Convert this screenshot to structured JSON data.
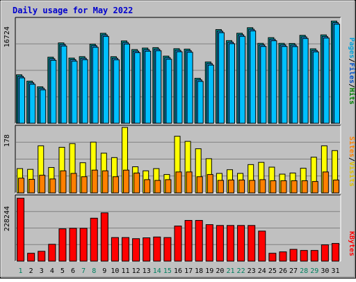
{
  "chart_data": {
    "type": "bar",
    "title": "Daily usage for May 2022",
    "categories": [
      "1",
      "2",
      "3",
      "4",
      "5",
      "6",
      "7",
      "8",
      "9",
      "10",
      "11",
      "12",
      "13",
      "14",
      "15",
      "16",
      "17",
      "18",
      "19",
      "20",
      "21",
      "22",
      "23",
      "24",
      "25",
      "26",
      "27",
      "28",
      "29",
      "30",
      "31"
    ],
    "weekend_days": [
      "1",
      "7",
      "8",
      "14",
      "15",
      "21",
      "22",
      "28",
      "29"
    ],
    "panels": [
      {
        "id": "hits",
        "ymax": 16724,
        "ymax_label": "16724",
        "legend": [
          {
            "text": "Pages",
            "color": "#00a0d8"
          },
          {
            "text": "/",
            "color": "#000000"
          },
          {
            "text": "Files",
            "color": "#0050c8"
          },
          {
            "text": "/",
            "color": "#000000"
          },
          {
            "text": "Hits",
            "color": "#008000"
          }
        ],
        "series": [
          {
            "name": "Hits",
            "color": "#00a0a0",
            "values": [
              7810,
              6790,
              5870,
              10650,
              12950,
              10510,
              10740,
              12750,
              14500,
              10730,
              13270,
              11880,
              12120,
              12190,
              10820,
              12020,
              11950,
              7250,
              9880,
              15100,
              13320,
              14510,
              15400,
              12880,
              13800,
              12880,
              12860,
              14170,
              12000,
              14240,
              16470
            ]
          },
          {
            "name": "Files",
            "color": "#1b8fdc",
            "values": [
              7560,
              6540,
              5640,
              10400,
              12700,
              10260,
              10490,
              12500,
              14250,
              10480,
              13020,
              11630,
              11870,
              11940,
              10570,
              11770,
              11700,
              7000,
              9630,
              14850,
              13070,
              14260,
              15150,
              12630,
              13550,
              12630,
              12610,
              13920,
              11750,
              13990,
              16220
            ]
          },
          {
            "name": "Pages",
            "color": "#00c0ff",
            "values": [
              7310,
              6290,
              5390,
              10150,
              12450,
              10010,
              10240,
              12250,
              14000,
              10230,
              12770,
              11380,
              11620,
              11690,
              10320,
              11520,
              11450,
              6750,
              9380,
              14600,
              12820,
              14010,
              14900,
              12380,
              13300,
              12380,
              12360,
              13670,
              11500,
              13740,
              15970
            ]
          }
        ]
      },
      {
        "id": "visits",
        "ymax": 178,
        "ymax_label": "178",
        "legend": [
          {
            "text": "Sites",
            "color": "#ff8000"
          },
          {
            "text": "/",
            "color": "#000000"
          },
          {
            "text": "Visits",
            "color": "#e0c000"
          }
        ],
        "series": [
          {
            "name": "Visits",
            "color": "#ffff00",
            "values": [
              66,
              64,
              128,
              69,
              124,
              134,
              82,
              138,
              108,
              96,
              178,
              71,
              60,
              66,
              50,
              154,
              140,
              120,
              93,
              53,
              63,
              53,
              77,
              83,
              70,
              51,
              54,
              67,
              97,
              128,
              115
            ]
          },
          {
            "name": "Sites",
            "color": "#ff8000",
            "values": [
              40,
              37,
              48,
              38,
              60,
              53,
              44,
              62,
              60,
              44,
              62,
              54,
              36,
              34,
              36,
              57,
              57,
              44,
              50,
              34,
              35,
              35,
              34,
              36,
              33,
              33,
              33,
              33,
              31,
              57,
              35
            ]
          }
        ]
      },
      {
        "id": "kbytes",
        "ymax": 228244,
        "ymax_label": "228244",
        "legend": [
          {
            "text": "KBytes",
            "color": "#ff0000"
          }
        ],
        "series": [
          {
            "name": "KBytes",
            "color": "#ff0000",
            "values": [
              224000,
              28000,
              35000,
              60000,
              115000,
              117000,
              117000,
              153000,
              172000,
              84000,
              84000,
              80000,
              83000,
              86000,
              84000,
              125000,
              145000,
              145000,
              130000,
              127000,
              127000,
              127000,
              127000,
              107000,
              28000,
              33000,
              42000,
              38000,
              38000,
              58000,
              63000
            ]
          }
        ]
      }
    ]
  }
}
